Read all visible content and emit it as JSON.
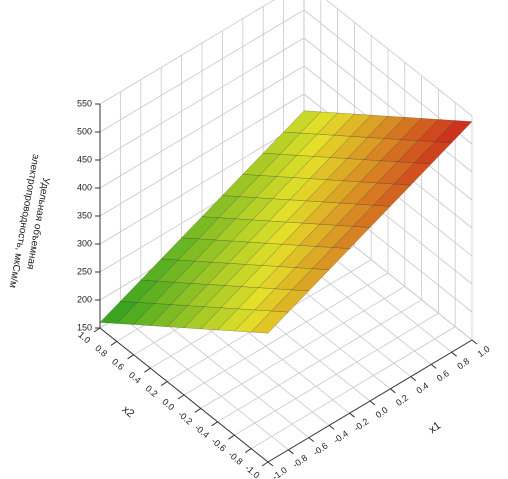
{
  "chart_data": {
    "type": "surface",
    "x_label": "x1",
    "y_label": "x2",
    "z_label_lines": [
      "Удельная объемная",
      "электропроводность, мкСм/м"
    ],
    "x": [
      -1,
      -0.8,
      -0.6,
      -0.4,
      -0.2,
      0,
      0.2,
      0.4,
      0.6,
      0.8,
      1
    ],
    "y": [
      -1,
      -0.8,
      -0.6,
      -0.4,
      -0.2,
      0,
      0.2,
      0.4,
      0.6,
      0.8,
      1
    ],
    "z": [
      [
        380,
        396,
        412,
        428,
        444,
        460,
        476,
        492,
        508,
        524,
        540
      ],
      [
        358,
        374,
        390,
        406,
        422,
        438,
        454,
        470,
        486,
        502,
        518
      ],
      [
        336,
        352,
        368,
        384,
        400,
        416,
        432,
        448,
        464,
        480,
        496
      ],
      [
        314,
        330,
        346,
        362,
        378,
        394,
        410,
        426,
        442,
        458,
        474
      ],
      [
        292,
        308,
        324,
        340,
        356,
        372,
        388,
        404,
        420,
        436,
        452
      ],
      [
        270,
        286,
        302,
        318,
        334,
        350,
        366,
        382,
        398,
        414,
        430
      ],
      [
        248,
        264,
        280,
        296,
        312,
        328,
        344,
        360,
        376,
        392,
        408
      ],
      [
        226,
        242,
        258,
        274,
        290,
        306,
        322,
        338,
        354,
        370,
        386
      ],
      [
        204,
        220,
        236,
        252,
        268,
        284,
        300,
        316,
        332,
        348,
        364
      ],
      [
        182,
        198,
        214,
        230,
        246,
        262,
        278,
        294,
        310,
        326,
        342
      ],
      [
        160,
        176,
        192,
        208,
        224,
        240,
        256,
        272,
        288,
        304,
        320
      ]
    ],
    "xlim": [
      -1,
      1
    ],
    "ylim": [
      -1,
      1
    ],
    "zlim": [
      150,
      550
    ],
    "xticks": [
      {
        "value": -1,
        "label": "-1.0"
      },
      {
        "value": -0.8,
        "label": "-0.8"
      },
      {
        "value": -0.6,
        "label": "-0.6"
      },
      {
        "value": -0.4,
        "label": "-0.4"
      },
      {
        "value": -0.2,
        "label": "-0.2"
      },
      {
        "value": 0,
        "label": "0.0"
      },
      {
        "value": 0.2,
        "label": "0.2"
      },
      {
        "value": 0.4,
        "label": "0.4"
      },
      {
        "value": 0.6,
        "label": "0.6"
      },
      {
        "value": 0.8,
        "label": "0.8"
      },
      {
        "value": 1,
        "label": "1.0"
      }
    ],
    "yticks": [
      {
        "value": -1,
        "label": "-1.0"
      },
      {
        "value": -0.8,
        "label": "-0.8"
      },
      {
        "value": -0.6,
        "label": "-0.6"
      },
      {
        "value": -0.4,
        "label": "-0.4"
      },
      {
        "value": -0.2,
        "label": "-0.2"
      },
      {
        "value": 0,
        "label": "0.0"
      },
      {
        "value": 0.2,
        "label": "0.2"
      },
      {
        "value": 0.4,
        "label": "0.4"
      },
      {
        "value": 0.6,
        "label": "0.6"
      },
      {
        "value": 0.8,
        "label": "0.8"
      },
      {
        "value": 1,
        "label": "1.0"
      }
    ],
    "zticks": [
      150,
      200,
      250,
      300,
      350,
      400,
      450,
      500,
      550
    ],
    "grid": true,
    "colormap": [
      "#1e9a1e",
      "#e4e02a",
      "#c8141a"
    ]
  }
}
